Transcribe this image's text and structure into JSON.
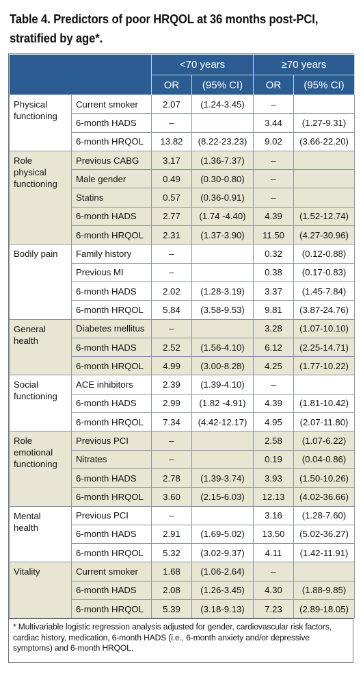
{
  "title_line1": "Table 4. Predictors of poor HRQOL at 36 months post-PCI,",
  "title_line2": "stratified by age*.",
  "header": {
    "group_under": "<70 years",
    "group_over": "≥70 years",
    "or": "OR",
    "ci": "(95% CI)"
  },
  "groups": [
    {
      "name": "Physical functioning",
      "shade": false,
      "rows": [
        {
          "predictor": "Current smoker",
          "or1": "2.07",
          "ci1": "(1.24-3.45)",
          "or2": "–",
          "ci2": ""
        },
        {
          "predictor": "6-month HADS",
          "or1": "–",
          "ci1": "",
          "or2": "3.44",
          "ci2": "(1.27-9.31)"
        },
        {
          "predictor": "6-month HRQOL",
          "or1": "13.82",
          "ci1": "(8.22-23.23)",
          "or2": "9.02",
          "ci2": "(3.66-22.20)"
        }
      ]
    },
    {
      "name": "Role physical functioning",
      "shade": true,
      "rows": [
        {
          "predictor": "Previous CABG",
          "or1": "3.17",
          "ci1": "(1.36-7.37)",
          "or2": "–",
          "ci2": ""
        },
        {
          "predictor": "Male gender",
          "or1": "0.49",
          "ci1": "(0.30-0.80)",
          "or2": "–",
          "ci2": ""
        },
        {
          "predictor": "Statins",
          "or1": "0.57",
          "ci1": "(0.36-0.91)",
          "or2": "–",
          "ci2": ""
        },
        {
          "predictor": "6-month HADS",
          "or1": "2.77",
          "ci1": "(1.74 -4.40)",
          "or2": "4.39",
          "ci2": "(1.52-12.74)"
        },
        {
          "predictor": "6-month HRQOL",
          "or1": "2.31",
          "ci1": "(1.37-3.90)",
          "or2": "11.50",
          "ci2": "(4.27-30.96)"
        }
      ]
    },
    {
      "name": "Bodily pain",
      "shade": false,
      "rows": [
        {
          "predictor": "Family history",
          "or1": "–",
          "ci1": "",
          "or2": "0.32",
          "ci2": "(0.12-0.88)"
        },
        {
          "predictor": "Previous MI",
          "or1": "–",
          "ci1": "",
          "or2": "0.38",
          "ci2": "(0.17-0.83)"
        },
        {
          "predictor": "6-month HADS",
          "or1": "2.02",
          "ci1": "(1.28-3.19)",
          "or2": "3.37",
          "ci2": "(1.45-7.84)"
        },
        {
          "predictor": "6-month HRQOL",
          "or1": "5.84",
          "ci1": "(3.58-9.53)",
          "or2": "9.81",
          "ci2": "(3.87-24.76)"
        }
      ]
    },
    {
      "name": "General health",
      "shade": true,
      "rows": [
        {
          "predictor": "Diabetes mellitus",
          "or1": "–",
          "ci1": "",
          "or2": "3.28",
          "ci2": "(1.07-10.10)"
        },
        {
          "predictor": "6-month HADS",
          "or1": "2.52",
          "ci1": "(1.56-4.10)",
          "or2": "6.12",
          "ci2": "(2.25-14.71)"
        },
        {
          "predictor": "6-month HRQOL",
          "or1": "4.99",
          "ci1": "(3.00-8.28)",
          "or2": "4.25",
          "ci2": "(1.77-10.22)"
        }
      ]
    },
    {
      "name": "Social functioning",
      "shade": false,
      "rows": [
        {
          "predictor": "ACE inhibitors",
          "or1": "2.39",
          "ci1": "(1.39-4.10)",
          "or2": "–",
          "ci2": ""
        },
        {
          "predictor": "6-month HADS",
          "or1": "2.99",
          "ci1": "(1.82 -4.91)",
          "or2": "4.39",
          "ci2": "(1.81-10.42)"
        },
        {
          "predictor": "6-month HRQOL",
          "or1": "7.34",
          "ci1": "(4.42-12.17)",
          "or2": "4.95",
          "ci2": "(2.07-11.80)"
        }
      ]
    },
    {
      "name": "Role emotional functioning",
      "shade": true,
      "rows": [
        {
          "predictor": "Previous PCI",
          "or1": "–",
          "ci1": "",
          "or2": "2.58",
          "ci2": "(1.07-6.22)"
        },
        {
          "predictor": "Nitrates",
          "or1": "–",
          "ci1": "",
          "or2": "0.19",
          "ci2": "(0.04-0.86)"
        },
        {
          "predictor": "6-month HADS",
          "or1": "2.78",
          "ci1": "(1.39-3.74)",
          "or2": "3.93",
          "ci2": "(1.50-10.26)"
        },
        {
          "predictor": "6-month HRQOL",
          "or1": "3.60",
          "ci1": "(2.15-6.03)",
          "or2": "12.13",
          "ci2": "(4.02-36.66)"
        }
      ]
    },
    {
      "name": "Mental health",
      "shade": false,
      "rows": [
        {
          "predictor": "Previous PCI",
          "or1": "–",
          "ci1": "",
          "or2": "3.16",
          "ci2": "(1.28-7.60)"
        },
        {
          "predictor": "6-month HADS",
          "or1": "2.91",
          "ci1": "(1.69-5.02)",
          "or2": "13.50",
          "ci2": "(5.02-36.27)"
        },
        {
          "predictor": "6-month HRQOL",
          "or1": "5.32",
          "ci1": "(3.02-9.37)",
          "or2": "4.11",
          "ci2": "(1.42-11.91)"
        }
      ]
    },
    {
      "name": "Vitality",
      "shade": true,
      "rows": [
        {
          "predictor": "Current smoker",
          "or1": "1.68",
          "ci1": "(1.06-2.64)",
          "or2": "–",
          "ci2": ""
        },
        {
          "predictor": "6-month HADS",
          "or1": "2.08",
          "ci1": "(1.26-3.45)",
          "or2": "4.30",
          "ci2": "(1.88-9.85)"
        },
        {
          "predictor": "6-month HRQOL",
          "or1": "5.39",
          "ci1": "(3.18-9.13)",
          "or2": "7.23",
          "ci2": "(2.89-18.05)"
        }
      ]
    }
  ],
  "footnote": "* Multivariable logistic regression analysis adjusted for gender, cardiovascular risk factors, cardiac history, medication, 6-month HADS (i.e., 6-month anxiety and/or depressive symptoms) and 6-month HRQOL."
}
